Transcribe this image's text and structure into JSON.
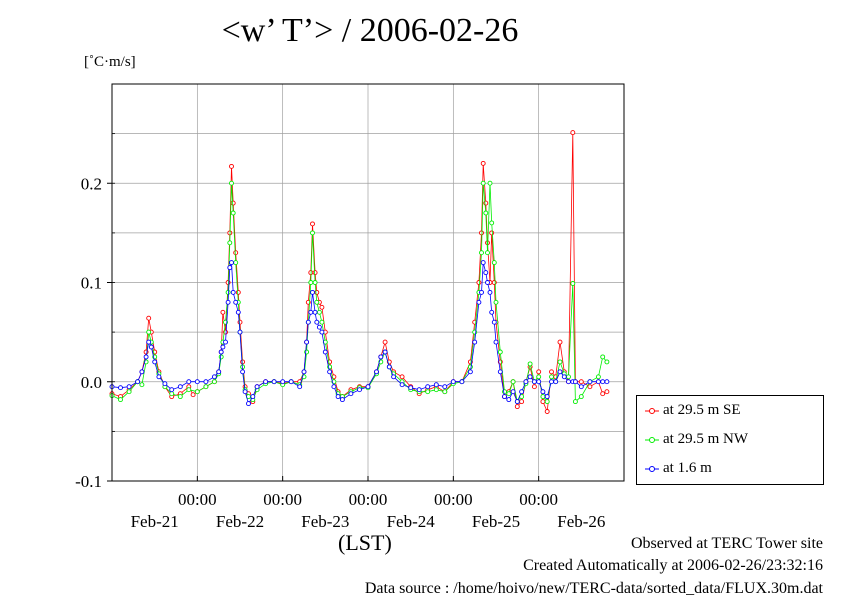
{
  "chart_data": {
    "type": "line",
    "title": "<w’ T’> / 2006-02-26",
    "ylabel_unit": "[˚C·m/s]",
    "xlabel": "(LST)",
    "ylim": [
      -0.1,
      0.3
    ],
    "y_ticks": [
      -0.1,
      0.0,
      0.1,
      0.2
    ],
    "y_tick_labels": [
      "-0.1",
      "0.0",
      "0.1",
      "0.2"
    ],
    "xlim_days": [
      0,
      6
    ],
    "x_grid_days": [
      1,
      2,
      3,
      4,
      5
    ],
    "x_time_labels": [
      "00:00",
      "00:00",
      "00:00",
      "00:00",
      "00:00"
    ],
    "x_date_labels": [
      "Feb-21",
      "Feb-22",
      "Feb-23",
      "Feb-24",
      "Feb-25",
      "Feb-26"
    ],
    "x_date_label_days": [
      0.5,
      1.5,
      2.5,
      3.5,
      4.5,
      5.5
    ],
    "grid": true,
    "legend_position": "right",
    "series": [
      {
        "name": "at 29.5 m SE",
        "color": "#ff0000",
        "points": [
          [
            0.0,
            -0.012
          ],
          [
            0.1,
            -0.015
          ],
          [
            0.2,
            -0.008
          ],
          [
            0.3,
            0.0
          ],
          [
            0.35,
            0.01
          ],
          [
            0.4,
            0.03
          ],
          [
            0.43,
            0.064
          ],
          [
            0.46,
            0.05
          ],
          [
            0.5,
            0.03
          ],
          [
            0.55,
            0.01
          ],
          [
            0.62,
            -0.005
          ],
          [
            0.7,
            -0.015
          ],
          [
            0.8,
            -0.012
          ],
          [
            0.9,
            -0.005
          ],
          [
            0.95,
            -0.013
          ],
          [
            1.0,
            -0.01
          ],
          [
            1.1,
            -0.005
          ],
          [
            1.2,
            0.0
          ],
          [
            1.25,
            0.01
          ],
          [
            1.28,
            0.03
          ],
          [
            1.3,
            0.07
          ],
          [
            1.33,
            0.05
          ],
          [
            1.36,
            0.1
          ],
          [
            1.38,
            0.15
          ],
          [
            1.4,
            0.217
          ],
          [
            1.42,
            0.18
          ],
          [
            1.45,
            0.13
          ],
          [
            1.48,
            0.09
          ],
          [
            1.5,
            0.06
          ],
          [
            1.53,
            0.02
          ],
          [
            1.56,
            -0.005
          ],
          [
            1.6,
            -0.012
          ],
          [
            1.65,
            -0.02
          ],
          [
            1.7,
            -0.005
          ],
          [
            1.8,
            0.0
          ],
          [
            1.9,
            0.0
          ],
          [
            2.0,
            -0.002
          ],
          [
            2.1,
            0.0
          ],
          [
            2.2,
            0.0
          ],
          [
            2.25,
            0.01
          ],
          [
            2.28,
            0.04
          ],
          [
            2.3,
            0.08
          ],
          [
            2.33,
            0.11
          ],
          [
            2.35,
            0.159
          ],
          [
            2.38,
            0.11
          ],
          [
            2.4,
            0.09
          ],
          [
            2.43,
            0.08
          ],
          [
            2.46,
            0.075
          ],
          [
            2.5,
            0.05
          ],
          [
            2.55,
            0.02
          ],
          [
            2.6,
            0.005
          ],
          [
            2.65,
            -0.01
          ],
          [
            2.7,
            -0.015
          ],
          [
            2.8,
            -0.008
          ],
          [
            2.9,
            -0.005
          ],
          [
            3.0,
            -0.005
          ],
          [
            3.1,
            0.01
          ],
          [
            3.15,
            0.025
          ],
          [
            3.2,
            0.04
          ],
          [
            3.25,
            0.02
          ],
          [
            3.3,
            0.01
          ],
          [
            3.4,
            0.005
          ],
          [
            3.5,
            -0.005
          ],
          [
            3.6,
            -0.012
          ],
          [
            3.7,
            -0.008
          ],
          [
            3.8,
            -0.005
          ],
          [
            3.9,
            -0.01
          ],
          [
            4.0,
            0.0
          ],
          [
            4.1,
            0.0
          ],
          [
            4.2,
            0.02
          ],
          [
            4.25,
            0.06
          ],
          [
            4.3,
            0.1
          ],
          [
            4.33,
            0.15
          ],
          [
            4.35,
            0.22
          ],
          [
            4.38,
            0.18
          ],
          [
            4.4,
            0.14
          ],
          [
            4.43,
            0.1
          ],
          [
            4.45,
            0.15
          ],
          [
            4.48,
            0.1
          ],
          [
            4.5,
            0.06
          ],
          [
            4.55,
            0.02
          ],
          [
            4.6,
            -0.015
          ],
          [
            4.65,
            -0.01
          ],
          [
            4.7,
            0.0
          ],
          [
            4.75,
            -0.025
          ],
          [
            4.8,
            -0.02
          ],
          [
            4.85,
            0.0
          ],
          [
            4.9,
            0.015
          ],
          [
            4.95,
            -0.005
          ],
          [
            5.0,
            0.01
          ],
          [
            5.05,
            -0.02
          ],
          [
            5.1,
            -0.03
          ],
          [
            5.15,
            0.01
          ],
          [
            5.2,
            0.005
          ],
          [
            5.25,
            0.04
          ],
          [
            5.3,
            0.01
          ],
          [
            5.35,
            0.0
          ],
          [
            5.4,
            0.251
          ],
          [
            5.43,
            0.0
          ],
          [
            5.5,
            0.0
          ],
          [
            5.6,
            -0.005
          ],
          [
            5.7,
            0.0
          ],
          [
            5.75,
            -0.012
          ],
          [
            5.8,
            -0.01
          ]
        ]
      },
      {
        "name": "at 29.5 m NW",
        "color": "#00ee00",
        "points": [
          [
            0.0,
            -0.014
          ],
          [
            0.1,
            -0.018
          ],
          [
            0.2,
            -0.01
          ],
          [
            0.3,
            0.0
          ],
          [
            0.35,
            -0.003
          ],
          [
            0.4,
            0.02
          ],
          [
            0.43,
            0.05
          ],
          [
            0.46,
            0.04
          ],
          [
            0.5,
            0.025
          ],
          [
            0.55,
            0.008
          ],
          [
            0.62,
            -0.005
          ],
          [
            0.7,
            -0.012
          ],
          [
            0.8,
            -0.015
          ],
          [
            0.9,
            -0.008
          ],
          [
            1.0,
            -0.01
          ],
          [
            1.1,
            -0.005
          ],
          [
            1.2,
            0.0
          ],
          [
            1.25,
            0.008
          ],
          [
            1.28,
            0.025
          ],
          [
            1.3,
            0.04
          ],
          [
            1.33,
            0.06
          ],
          [
            1.36,
            0.09
          ],
          [
            1.38,
            0.14
          ],
          [
            1.4,
            0.2
          ],
          [
            1.42,
            0.17
          ],
          [
            1.45,
            0.12
          ],
          [
            1.48,
            0.08
          ],
          [
            1.5,
            0.05
          ],
          [
            1.53,
            0.015
          ],
          [
            1.56,
            -0.008
          ],
          [
            1.6,
            -0.015
          ],
          [
            1.65,
            -0.018
          ],
          [
            1.7,
            -0.008
          ],
          [
            1.8,
            -0.002
          ],
          [
            1.9,
            0.0
          ],
          [
            2.0,
            -0.003
          ],
          [
            2.1,
            0.0
          ],
          [
            2.2,
            -0.003
          ],
          [
            2.25,
            0.005
          ],
          [
            2.28,
            0.03
          ],
          [
            2.3,
            0.06
          ],
          [
            2.33,
            0.1
          ],
          [
            2.35,
            0.15
          ],
          [
            2.38,
            0.1
          ],
          [
            2.4,
            0.08
          ],
          [
            2.43,
            0.07
          ],
          [
            2.46,
            0.06
          ],
          [
            2.5,
            0.04
          ],
          [
            2.55,
            0.015
          ],
          [
            2.6,
            0.0
          ],
          [
            2.65,
            -0.012
          ],
          [
            2.7,
            -0.015
          ],
          [
            2.8,
            -0.01
          ],
          [
            2.9,
            -0.006
          ],
          [
            3.0,
            -0.006
          ],
          [
            3.1,
            0.008
          ],
          [
            3.15,
            0.02
          ],
          [
            3.2,
            0.03
          ],
          [
            3.25,
            0.015
          ],
          [
            3.3,
            0.008
          ],
          [
            3.4,
            0.0
          ],
          [
            3.5,
            -0.008
          ],
          [
            3.6,
            -0.01
          ],
          [
            3.7,
            -0.01
          ],
          [
            3.8,
            -0.008
          ],
          [
            3.9,
            -0.01
          ],
          [
            4.0,
            -0.002
          ],
          [
            4.1,
            0.0
          ],
          [
            4.2,
            0.015
          ],
          [
            4.25,
            0.05
          ],
          [
            4.3,
            0.09
          ],
          [
            4.33,
            0.13
          ],
          [
            4.35,
            0.2
          ],
          [
            4.38,
            0.17
          ],
          [
            4.4,
            0.13
          ],
          [
            4.43,
            0.2
          ],
          [
            4.45,
            0.16
          ],
          [
            4.48,
            0.12
          ],
          [
            4.5,
            0.08
          ],
          [
            4.55,
            0.03
          ],
          [
            4.6,
            -0.01
          ],
          [
            4.65,
            -0.012
          ],
          [
            4.7,
            0.0
          ],
          [
            4.75,
            -0.02
          ],
          [
            4.8,
            -0.015
          ],
          [
            4.85,
            -0.002
          ],
          [
            4.9,
            0.018
          ],
          [
            4.95,
            0.0
          ],
          [
            5.0,
            0.005
          ],
          [
            5.05,
            -0.015
          ],
          [
            5.1,
            -0.02
          ],
          [
            5.15,
            0.005
          ],
          [
            5.2,
            0.0
          ],
          [
            5.25,
            0.02
          ],
          [
            5.3,
            0.008
          ],
          [
            5.35,
            0.005
          ],
          [
            5.4,
            0.099
          ],
          [
            5.43,
            -0.02
          ],
          [
            5.5,
            -0.015
          ],
          [
            5.6,
            0.0
          ],
          [
            5.7,
            0.005
          ],
          [
            5.75,
            0.025
          ],
          [
            5.8,
            0.02
          ]
        ]
      },
      {
        "name": "at 1.6 m",
        "color": "#0000ff",
        "points": [
          [
            0.0,
            -0.005
          ],
          [
            0.1,
            -0.006
          ],
          [
            0.2,
            -0.005
          ],
          [
            0.3,
            0.0
          ],
          [
            0.35,
            0.01
          ],
          [
            0.4,
            0.025
          ],
          [
            0.43,
            0.04
          ],
          [
            0.46,
            0.035
          ],
          [
            0.5,
            0.02
          ],
          [
            0.55,
            0.005
          ],
          [
            0.62,
            -0.002
          ],
          [
            0.7,
            -0.008
          ],
          [
            0.8,
            -0.005
          ],
          [
            0.9,
            0.0
          ],
          [
            1.0,
            0.0
          ],
          [
            1.1,
            0.0
          ],
          [
            1.2,
            0.005
          ],
          [
            1.25,
            0.01
          ],
          [
            1.28,
            0.03
          ],
          [
            1.3,
            0.035
          ],
          [
            1.33,
            0.04
          ],
          [
            1.36,
            0.08
          ],
          [
            1.38,
            0.115
          ],
          [
            1.4,
            0.12
          ],
          [
            1.42,
            0.09
          ],
          [
            1.45,
            0.08
          ],
          [
            1.48,
            0.07
          ],
          [
            1.5,
            0.05
          ],
          [
            1.53,
            0.01
          ],
          [
            1.56,
            -0.01
          ],
          [
            1.6,
            -0.022
          ],
          [
            1.65,
            -0.015
          ],
          [
            1.7,
            -0.005
          ],
          [
            1.8,
            0.0
          ],
          [
            1.9,
            0.0
          ],
          [
            2.0,
            0.0
          ],
          [
            2.1,
            0.0
          ],
          [
            2.2,
            -0.005
          ],
          [
            2.25,
            0.01
          ],
          [
            2.28,
            0.04
          ],
          [
            2.3,
            0.06
          ],
          [
            2.33,
            0.07
          ],
          [
            2.35,
            0.09
          ],
          [
            2.38,
            0.07
          ],
          [
            2.4,
            0.06
          ],
          [
            2.43,
            0.055
          ],
          [
            2.46,
            0.05
          ],
          [
            2.5,
            0.03
          ],
          [
            2.55,
            0.01
          ],
          [
            2.6,
            -0.005
          ],
          [
            2.65,
            -0.015
          ],
          [
            2.7,
            -0.018
          ],
          [
            2.8,
            -0.012
          ],
          [
            2.9,
            -0.008
          ],
          [
            3.0,
            -0.005
          ],
          [
            3.1,
            0.01
          ],
          [
            3.15,
            0.025
          ],
          [
            3.2,
            0.03
          ],
          [
            3.25,
            0.015
          ],
          [
            3.3,
            0.005
          ],
          [
            3.4,
            -0.003
          ],
          [
            3.5,
            -0.006
          ],
          [
            3.6,
            -0.008
          ],
          [
            3.7,
            -0.005
          ],
          [
            3.8,
            -0.003
          ],
          [
            3.9,
            -0.005
          ],
          [
            4.0,
            0.0
          ],
          [
            4.1,
            0.0
          ],
          [
            4.2,
            0.01
          ],
          [
            4.25,
            0.04
          ],
          [
            4.3,
            0.08
          ],
          [
            4.33,
            0.09
          ],
          [
            4.35,
            0.12
          ],
          [
            4.38,
            0.11
          ],
          [
            4.4,
            0.1
          ],
          [
            4.43,
            0.09
          ],
          [
            4.45,
            0.07
          ],
          [
            4.48,
            0.06
          ],
          [
            4.5,
            0.04
          ],
          [
            4.55,
            0.01
          ],
          [
            4.6,
            -0.015
          ],
          [
            4.65,
            -0.018
          ],
          [
            4.7,
            -0.01
          ],
          [
            4.75,
            -0.02
          ],
          [
            4.8,
            -0.01
          ],
          [
            4.85,
            0.0
          ],
          [
            4.9,
            0.005
          ],
          [
            4.95,
            0.0
          ],
          [
            5.0,
            0.0
          ],
          [
            5.05,
            -0.01
          ],
          [
            5.1,
            -0.015
          ],
          [
            5.15,
            0.0
          ],
          [
            5.2,
            0.0
          ],
          [
            5.25,
            0.01
          ],
          [
            5.3,
            0.005
          ],
          [
            5.35,
            0.0
          ],
          [
            5.4,
            0.0
          ],
          [
            5.43,
            0.0
          ],
          [
            5.5,
            -0.005
          ],
          [
            5.6,
            0.0
          ],
          [
            5.7,
            0.0
          ],
          [
            5.75,
            0.0
          ],
          [
            5.8,
            0.0
          ]
        ]
      }
    ]
  },
  "footer": {
    "line1": "Observed at TERC Tower site",
    "line2": "Created Automatically at 2006-02-26/23:32:16",
    "line3": "Data source : /home/hoivo/new/TERC-data/sorted_data/FLUX.30m.dat"
  }
}
